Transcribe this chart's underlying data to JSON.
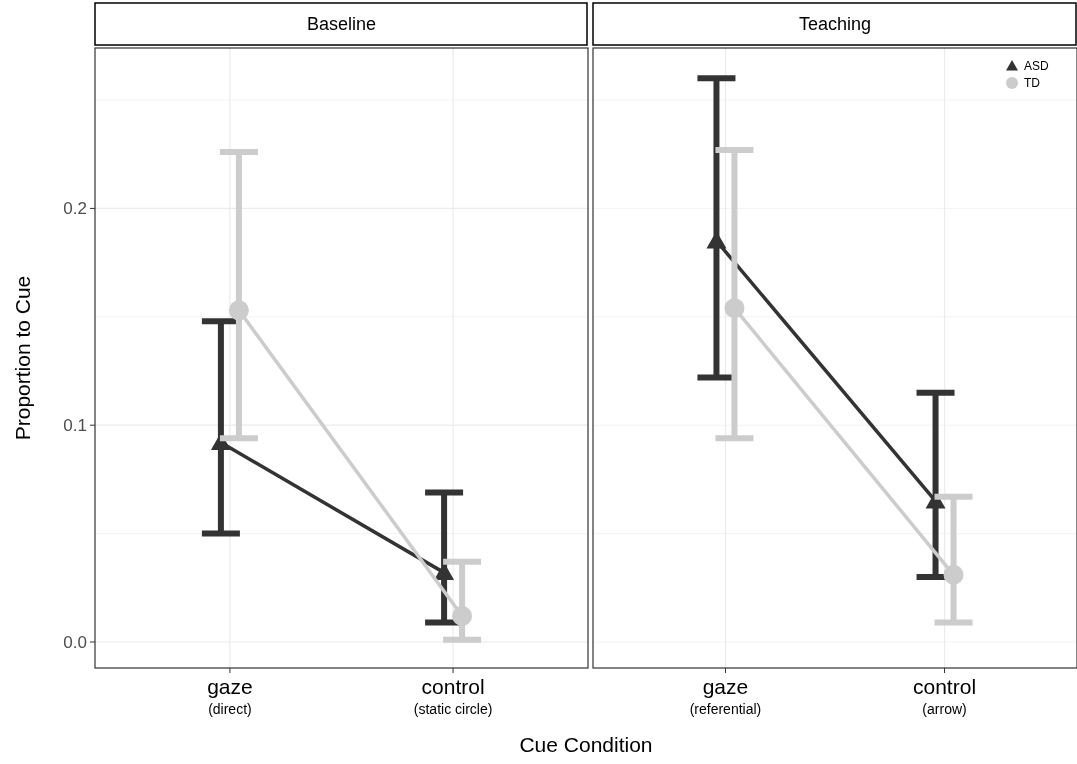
{
  "chart_data": [
    {
      "type": "line",
      "title": "Baseline",
      "xlabel": "Cue Condition",
      "ylabel": "Proportion to Cue",
      "categories": [
        "gaze\n(direct)",
        "control\n(static circle)"
      ],
      "series": [
        {
          "color": "#333333",
          "marker": "triangle",
          "values": [
            0.092,
            0.032
          ],
          "errors": [
            [
              0.05,
              0.148
            ],
            [
              0.009,
              0.069
            ]
          ]
        },
        {
          "color": "#cccccc",
          "marker": "circle",
          "values": [
            0.153,
            0.012
          ],
          "errors": [
            [
              0.094,
              0.226
            ],
            [
              0.001,
              0.037
            ]
          ]
        }
      ],
      "ylim": [
        -0.012,
        0.274
      ],
      "yticks": [
        {
          "value": 0,
          "label": "0.0"
        },
        {
          "value": 0.05,
          "label": null
        },
        {
          "value": 0.1,
          "label": "0.1"
        },
        {
          "value": 0.15,
          "label": null
        },
        {
          "value": 0.2,
          "label": "0.2"
        },
        {
          "value": 0.25,
          "label": null
        }
      ],
      "grid": true,
      "legend": false
    },
    {
      "type": "line",
      "title": "Teaching",
      "categories": [
        "gaze\n(referential)",
        "control\n(arrow)"
      ],
      "series": [
        {
          "name": "ASD",
          "color": "#333333",
          "marker": "triangle",
          "values": [
            0.185,
            0.065
          ],
          "errors": [
            [
              0.122,
              0.26
            ],
            [
              0.03,
              0.115
            ]
          ]
        },
        {
          "name": "TD",
          "color": "#cccccc",
          "marker": "circle",
          "values": [
            0.154,
            0.031
          ],
          "errors": [
            [
              0.094,
              0.227
            ],
            [
              0.009,
              0.067
            ]
          ]
        }
      ],
      "ylim": [
        -0.012,
        0.274
      ],
      "yticks": [
        {
          "value": 0,
          "label": null
        },
        {
          "value": 0.05,
          "label": null
        },
        {
          "value": 0.1,
          "label": null
        },
        {
          "value": 0.15,
          "label": null
        },
        {
          "value": 0.2,
          "label": null
        },
        {
          "value": 0.25,
          "label": null
        }
      ],
      "grid": true,
      "legend": "top right",
      "tick_labels": "x"
    }
  ]
}
